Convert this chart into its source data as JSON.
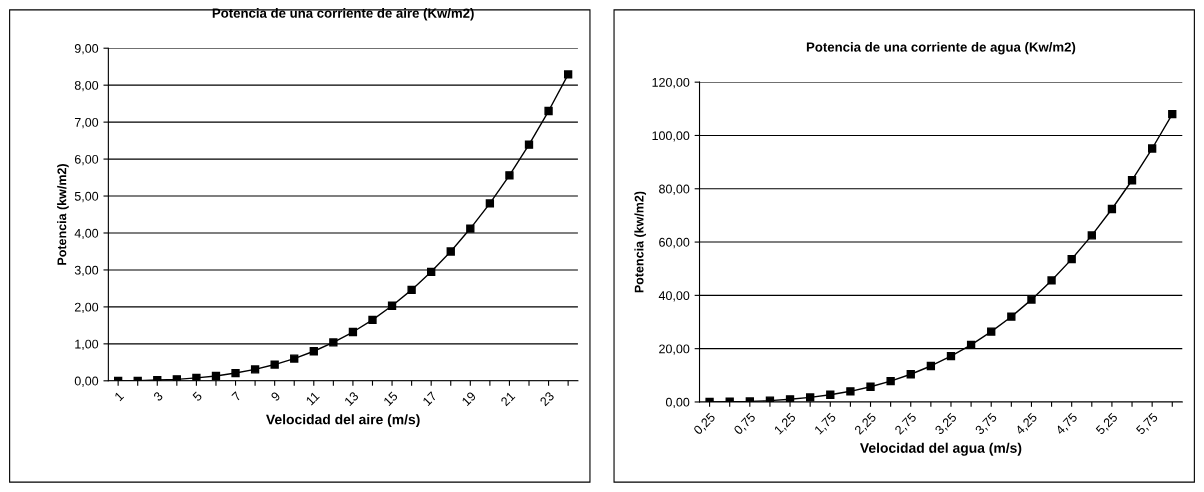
{
  "chart_data": [
    {
      "type": "line",
      "title": "Potencia de una corriente de aire (Kw/m2)",
      "xlabel": "Velocidad del aire (m/s)",
      "ylabel": "Potencia (kw/m2)",
      "categories": [
        "1",
        null,
        "3",
        null,
        "5",
        null,
        "7",
        null,
        "9",
        null,
        "11",
        null,
        "13",
        null,
        "15",
        null,
        "17",
        null,
        "19",
        null,
        "21",
        null,
        "23",
        null
      ],
      "series": [
        {
          "color": "#000000",
          "values": [
            0.0,
            0.0,
            0.02,
            0.04,
            0.08,
            0.13,
            0.21,
            0.31,
            0.44,
            0.6,
            0.8,
            1.04,
            1.32,
            1.65,
            2.03,
            2.46,
            2.95,
            3.5,
            4.12,
            4.8,
            5.56,
            6.39,
            7.3,
            8.29
          ]
        }
      ],
      "ylim": [
        0,
        9
      ],
      "yticks": [
        {
          "value": 0,
          "label": "0,00"
        },
        {
          "value": 1,
          "label": "1,00"
        },
        {
          "value": 2,
          "label": "2,00"
        },
        {
          "value": 3,
          "label": "3,00"
        },
        {
          "value": 4,
          "label": "4,00"
        },
        {
          "value": 5,
          "label": "5,00"
        },
        {
          "value": 6,
          "label": "6,00"
        },
        {
          "value": 7,
          "label": "7,00"
        },
        {
          "value": 8,
          "label": "8,00"
        },
        {
          "value": 9,
          "label": "9,00"
        }
      ],
      "grid": "y",
      "marker": "square",
      "line_style": "solid"
    },
    {
      "type": "line",
      "title": "Potencia de una corriente de agua (Kw/m2)",
      "xlabel": "Velocidad del agua (m/s)",
      "ylabel": "Potencia (kw/m2)",
      "categories": [
        "0,25",
        null,
        "0,75",
        null,
        "1,25",
        null,
        "1,75",
        null,
        "2,25",
        null,
        "2,75",
        null,
        "3,25",
        null,
        "3,75",
        null,
        "4,25",
        null,
        "4,75",
        null,
        "5,25",
        null,
        "5,75",
        null
      ],
      "series": [
        {
          "color": "#000000",
          "values": [
            0.0,
            0.1,
            0.2,
            0.5,
            1.0,
            1.7,
            2.7,
            4.0,
            5.7,
            7.8,
            10.4,
            13.5,
            17.2,
            21.4,
            26.4,
            32.0,
            38.4,
            45.6,
            53.6,
            62.5,
            72.4,
            83.2,
            95.1,
            108.0
          ]
        }
      ],
      "ylim": [
        0,
        120
      ],
      "yticks": [
        {
          "value": 0,
          "label": "0,00"
        },
        {
          "value": 20,
          "label": "20,00"
        },
        {
          "value": 40,
          "label": "40,00"
        },
        {
          "value": 60,
          "label": "60,00"
        },
        {
          "value": 80,
          "label": "80,00"
        },
        {
          "value": 100,
          "label": "100,00"
        },
        {
          "value": 120,
          "label": "120,00"
        }
      ],
      "grid": "y",
      "marker": "square",
      "line_style": "solid"
    }
  ]
}
